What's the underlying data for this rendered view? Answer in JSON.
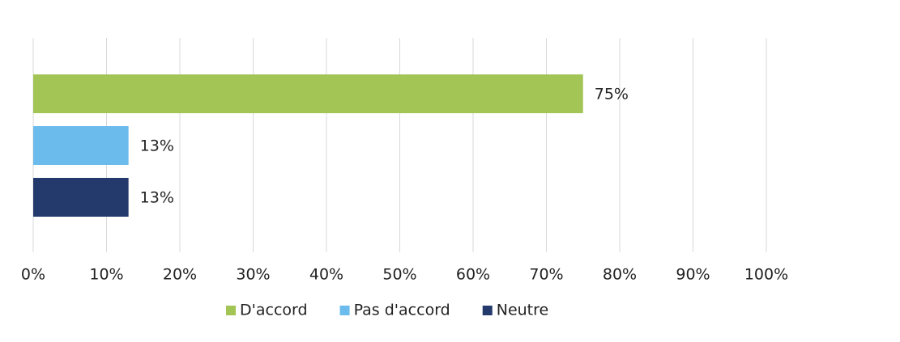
{
  "chart_data": {
    "type": "bar",
    "orientation": "horizontal",
    "categories": [
      null
    ],
    "series": [
      {
        "name": "D'accord",
        "color": "#a2c556",
        "values": [
          75
        ],
        "value_labels": [
          "75%"
        ]
      },
      {
        "name": "Pas d'accord",
        "color": "#6bbbec",
        "values": [
          13
        ],
        "value_labels": [
          "13%"
        ]
      },
      {
        "name": "Neutre",
        "color": "#243a6c",
        "values": [
          13
        ],
        "value_labels": [
          "13%"
        ]
      }
    ],
    "xlim": [
      0,
      100
    ],
    "xticks": [
      {
        "value": 0,
        "label": "0%"
      },
      {
        "value": 10,
        "label": "10%"
      },
      {
        "value": 20,
        "label": "20%"
      },
      {
        "value": 30,
        "label": "30%"
      },
      {
        "value": 40,
        "label": "40%"
      },
      {
        "value": 50,
        "label": "50%"
      },
      {
        "value": 60,
        "label": "60%"
      },
      {
        "value": 70,
        "label": "70%"
      },
      {
        "value": 80,
        "label": "80%"
      },
      {
        "value": 90,
        "label": "90%"
      },
      {
        "value": 100,
        "label": "100%"
      }
    ],
    "grid": true,
    "legend": "bottom"
  }
}
